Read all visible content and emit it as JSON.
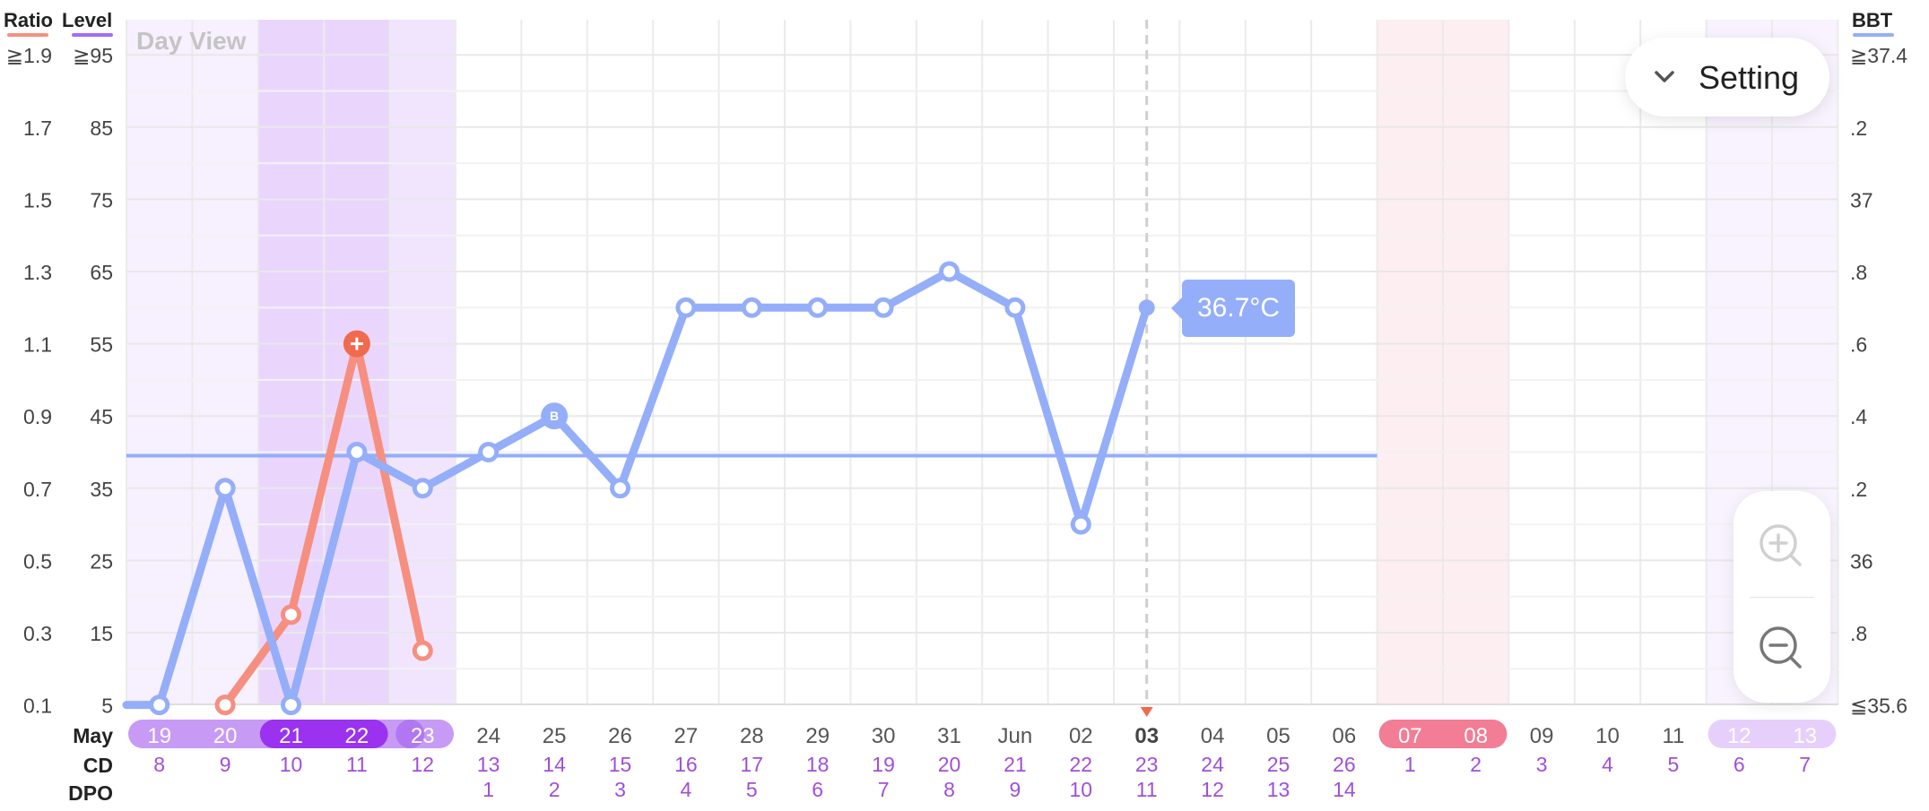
{
  "chart_data": {
    "type": "line",
    "view_label": "Day View",
    "left_axis_ratio": {
      "title": "Ratio",
      "color": "#f68f80",
      "ticks": [
        "≧1.9",
        "1.7",
        "1.5",
        "1.3",
        "1.1",
        "0.9",
        "0.7",
        "0.5",
        "0.3",
        "0.1"
      ]
    },
    "left_axis_level": {
      "title": "Level",
      "color": "#a66cf0",
      "ticks": [
        "≧95",
        "85",
        "75",
        "65",
        "55",
        "45",
        "35",
        "25",
        "15",
        "5"
      ]
    },
    "right_axis_bbt": {
      "title": "BBT",
      "color": "#94aef9",
      "ticks": [
        "≧37.4",
        ".2",
        "37",
        ".8",
        ".6",
        ".4",
        ".2",
        "36",
        ".8",
        "≦35.6"
      ]
    },
    "row_labels": {
      "month": "May",
      "cd": "CD",
      "dpo": "DPO"
    },
    "dates": [
      "19",
      "20",
      "21",
      "22",
      "23",
      "24",
      "25",
      "26",
      "27",
      "28",
      "29",
      "30",
      "31",
      "Jun",
      "02",
      "03",
      "04",
      "05",
      "06",
      "07",
      "08",
      "09",
      "10",
      "11",
      "12",
      "13"
    ],
    "cd": [
      "8",
      "9",
      "10",
      "11",
      "12",
      "13",
      "14",
      "15",
      "16",
      "17",
      "18",
      "19",
      "20",
      "21",
      "22",
      "23",
      "24",
      "25",
      "26",
      "1",
      "2",
      "3",
      "4",
      "5",
      "6",
      "7"
    ],
    "dpo": [
      "",
      "",
      "",
      "",
      "",
      "1",
      "2",
      "3",
      "4",
      "5",
      "6",
      "7",
      "8",
      "9",
      "10",
      "11",
      "12",
      "13",
      "14",
      "",
      "",
      "",
      "",
      "",
      "",
      ""
    ],
    "date_highlight": [
      "fertile-light",
      "fertile-light",
      "fertile-dark",
      "fertile-dark",
      "fertile-mid",
      "",
      "",
      "",
      "",
      "",
      "",
      "",
      "",
      "",
      "",
      "today",
      "",
      "",
      "",
      "period",
      "period",
      "",
      "",
      "",
      "fertile-pale",
      "fertile-pale"
    ],
    "series": [
      {
        "name": "BBT",
        "color": "#94aef9",
        "points": [
          {
            "date": "18",
            "value": 35.6
          },
          {
            "date": "19",
            "value": 35.6
          },
          {
            "date": "20",
            "value": 36.2
          },
          {
            "date": "21",
            "value": 35.6
          },
          {
            "date": "22",
            "value": 36.3
          },
          {
            "date": "23",
            "value": 36.2
          },
          {
            "date": "24",
            "value": 36.3
          },
          {
            "date": "25",
            "value": 36.4,
            "marker": "B"
          },
          {
            "date": "26",
            "value": 36.2
          },
          {
            "date": "27",
            "value": 36.7
          },
          {
            "date": "28",
            "value": 36.7
          },
          {
            "date": "29",
            "value": 36.7
          },
          {
            "date": "30",
            "value": 36.7
          },
          {
            "date": "31",
            "value": 36.8
          },
          {
            "date": "Jun",
            "value": 36.7
          },
          {
            "date": "02",
            "value": 36.1
          },
          {
            "date": "03",
            "value": 36.7
          }
        ]
      },
      {
        "name": "Ratio",
        "color": "#f68f80",
        "points": [
          {
            "date": "20",
            "value": 0.1
          },
          {
            "date": "21",
            "value": 0.35
          },
          {
            "date": "22",
            "value": 1.1,
            "marker": "+"
          },
          {
            "date": "23",
            "value": 0.25
          }
        ]
      }
    ],
    "coverline_bbt": 36.29,
    "tooltip": {
      "date": "03",
      "label": "36.7°C"
    },
    "today_index": 15,
    "period_indices": [
      19,
      20
    ],
    "fertile_window": {
      "light": [
        0,
        1
      ],
      "dark": [
        2,
        3
      ],
      "mid": [
        4
      ]
    },
    "grid": true
  },
  "controls": {
    "setting_label": "Setting",
    "chevron_icon": "chevron-down-icon",
    "zoom_in_icon": "zoom-in-icon",
    "zoom_out_icon": "zoom-out-icon"
  },
  "colors": {
    "bbt": "#94aef9",
    "ratio": "#f68f80",
    "level": "#a66cf0",
    "cd_text": "#a04fd8",
    "today_marker": "#f06a4f"
  }
}
